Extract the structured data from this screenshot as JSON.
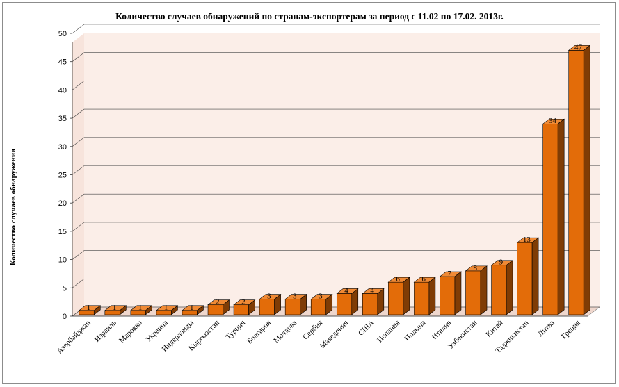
{
  "chart_data": {
    "type": "bar",
    "title": "Количество случаев обнаружений по странам-экспортерам за период с 11.02 по 17.02. 2013г.",
    "ylabel": "Количество случаев обнаружения",
    "xlabel": "",
    "ylim": [
      0,
      50
    ],
    "yticks": [
      0,
      5,
      10,
      15,
      20,
      25,
      30,
      35,
      40,
      45,
      50
    ],
    "grid": true,
    "three_d": true,
    "categories": [
      "Азербайджан",
      "Израиль",
      "Марокко",
      "Украина",
      "Нидерланды",
      "Кыргызстан",
      "Турция",
      "Болгария",
      "Молдова",
      "Сербия",
      "Македония",
      "США",
      "Испания",
      "Польша",
      "Италия",
      "Узбекистан",
      "Китай",
      "Таджикистан",
      "Литва",
      "Греция"
    ],
    "values": [
      1,
      1,
      1,
      1,
      1,
      2,
      2,
      3,
      3,
      3,
      4,
      4,
      6,
      6,
      7,
      8,
      9,
      13,
      34,
      47
    ],
    "colors": {
      "bar_front": "#e36c09",
      "bar_top": "#f08a35",
      "bar_side": "#7f3c05",
      "plot_bg": "#fbeee8",
      "grid": "#444444"
    }
  }
}
